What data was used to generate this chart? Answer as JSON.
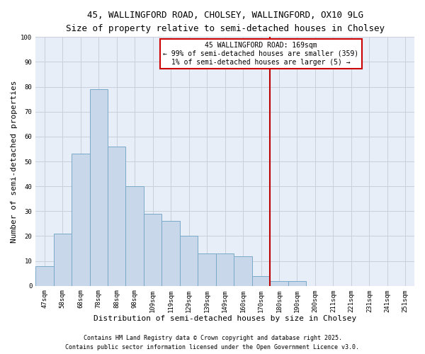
{
  "title1": "45, WALLINGFORD ROAD, CHOLSEY, WALLINGFORD, OX10 9LG",
  "title2": "Size of property relative to semi-detached houses in Cholsey",
  "xlabel": "Distribution of semi-detached houses by size in Cholsey",
  "ylabel": "Number of semi-detached properties",
  "categories": [
    "47sqm",
    "58sqm",
    "68sqm",
    "78sqm",
    "88sqm",
    "98sqm",
    "109sqm",
    "119sqm",
    "129sqm",
    "139sqm",
    "149sqm",
    "160sqm",
    "170sqm",
    "180sqm",
    "190sqm",
    "200sqm",
    "211sqm",
    "221sqm",
    "231sqm",
    "241sqm",
    "251sqm"
  ],
  "values": [
    8,
    21,
    53,
    79,
    56,
    40,
    29,
    26,
    20,
    13,
    13,
    12,
    4,
    2,
    2,
    0,
    0,
    0,
    0,
    0,
    0
  ],
  "bar_color": "#c8d8ea",
  "bar_edge_color": "#7aaac8",
  "grid_color": "#c8d0dc",
  "background_color": "#e8eef8",
  "vline_x_idx": 12,
  "vline_color": "#bb0000",
  "annotation_text": "45 WALLINGFORD ROAD: 169sqm\n← 99% of semi-detached houses are smaller (359)\n1% of semi-detached houses are larger (5) →",
  "annotation_box_color": "#cc0000",
  "ylim": [
    0,
    100
  ],
  "yticks": [
    0,
    10,
    20,
    30,
    40,
    50,
    60,
    70,
    80,
    90,
    100
  ],
  "footer1": "Contains HM Land Registry data © Crown copyright and database right 2025.",
  "footer2": "Contains public sector information licensed under the Open Government Licence v3.0.",
  "title_fontsize": 9,
  "subtitle_fontsize": 8,
  "axis_label_fontsize": 8,
  "tick_fontsize": 6.5,
  "annotation_fontsize": 7,
  "footer_fontsize": 6
}
